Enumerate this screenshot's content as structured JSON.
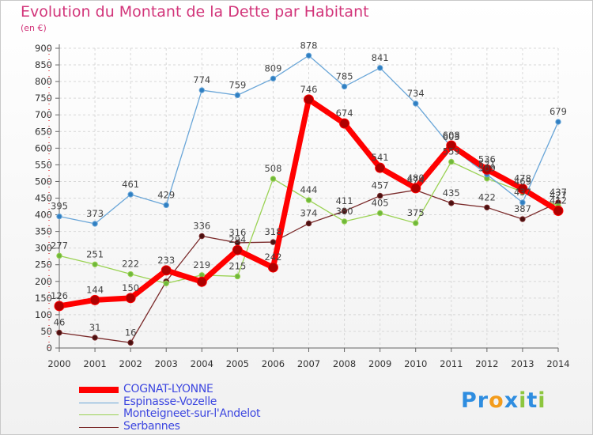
{
  "chart_data": {
    "type": "line",
    "title": "Evolution du Montant de la Dette par Habitant",
    "ylabel": "(en €)",
    "xlabel": "",
    "x": [
      "2000",
      "2001",
      "2002",
      "2003",
      "2004",
      "2005",
      "2006",
      "2007",
      "2008",
      "2009",
      "2010",
      "2011",
      "2012",
      "2013",
      "2014"
    ],
    "ylim": [
      0,
      900
    ],
    "yticks": [
      0,
      50,
      100,
      150,
      200,
      250,
      300,
      350,
      400,
      450,
      500,
      550,
      600,
      650,
      700,
      750,
      800,
      850,
      900
    ],
    "grid": true,
    "legend_position": "bottom-left",
    "series": [
      {
        "name": "COGNAT-LYONNE",
        "color": "#ff0000",
        "values": [
          126,
          144,
          150,
          233,
          199,
          294,
          242,
          746,
          674,
          541,
          480,
          608,
          536,
          478,
          412
        ],
        "labels": [
          "126",
          "144",
          "150",
          "233",
          "",
          "294",
          "242",
          "746",
          "674",
          "541",
          "480",
          "608",
          "536",
          "478",
          "412"
        ]
      },
      {
        "name": "Espinasse-Vozelle",
        "color": "#6aa6d8",
        "values": [
          395,
          373,
          461,
          429,
          774,
          759,
          809,
          878,
          785,
          841,
          734,
          603,
          521,
          437,
          679
        ],
        "labels": [
          "395",
          "373",
          "461",
          "429",
          "774",
          "759",
          "809",
          "878",
          "785",
          "841",
          "734",
          "603",
          "521",
          "437",
          "679"
        ]
      },
      {
        "name": "Monteigneet-sur-l'Andelot",
        "color": "#9ad253",
        "values": [
          277,
          251,
          222,
          194,
          219,
          215,
          508,
          444,
          380,
          405,
          375,
          559,
          509,
          469,
          427
        ],
        "labels": [
          "277",
          "251",
          "222",
          "",
          "219",
          "215",
          "508",
          "444",
          "380",
          "405",
          "375",
          "559",
          "509",
          "469",
          "427"
        ]
      },
      {
        "name": "Serbannes",
        "color": "#7a2a2a",
        "values": [
          46,
          31,
          16,
          200,
          336,
          316,
          318,
          374,
          411,
          457,
          474,
          435,
          422,
          387,
          437
        ],
        "labels": [
          "46",
          "31",
          "16",
          "",
          "336",
          "316",
          "318",
          "374",
          "411",
          "457",
          "474",
          "435",
          "422",
          "387",
          "437"
        ]
      }
    ]
  },
  "legend": {
    "items": [
      "COGNAT-LYONNE",
      "Espinasse-Vozelle",
      "Monteigneet-sur-l'Andelot",
      "Serbannes"
    ]
  },
  "logo": {
    "letters": [
      "P",
      "r",
      "o",
      "x",
      "i",
      "t",
      "i"
    ],
    "colors": [
      "#2e8de0",
      "#2e8de0",
      "#f39c1c",
      "#2e8de0",
      "#8dc63f",
      "#2e8de0",
      "#8dc63f"
    ]
  }
}
